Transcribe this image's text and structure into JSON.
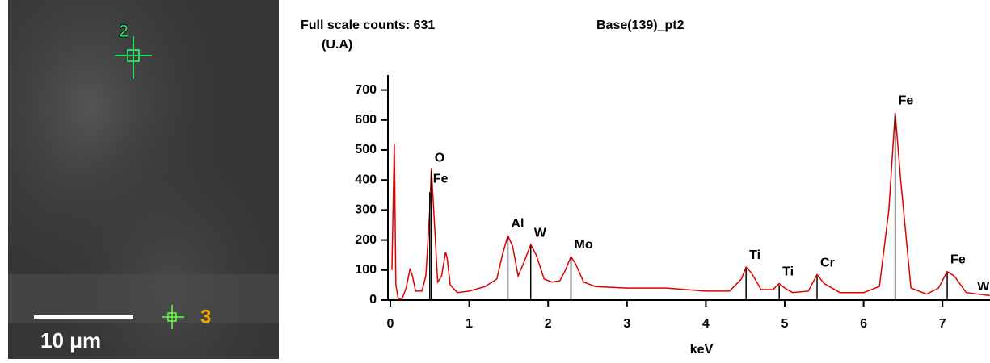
{
  "sem_image": {
    "markers": [
      "2",
      "3"
    ],
    "scale_bar": "10 μm"
  },
  "chart_data": {
    "type": "line",
    "title": "Full scale counts: 631",
    "subtitle": "Base(139)_pt2",
    "y_label": "(U.A)",
    "x_label": "keV",
    "xlim": [
      0,
      7.6
    ],
    "xticks": [
      0,
      1,
      2,
      3,
      4,
      5,
      6,
      7
    ],
    "ylim": [
      0,
      750
    ],
    "yticks": [
      0,
      100,
      200,
      300,
      400,
      500,
      600,
      700
    ],
    "x": [
      0.02,
      0.05,
      0.07,
      0.1,
      0.15,
      0.2,
      0.25,
      0.28,
      0.32,
      0.4,
      0.45,
      0.5,
      0.52,
      0.55,
      0.6,
      0.65,
      0.7,
      0.72,
      0.76,
      0.85,
      1.0,
      1.2,
      1.35,
      1.42,
      1.49,
      1.55,
      1.62,
      1.7,
      1.78,
      1.85,
      1.95,
      2.05,
      2.15,
      2.22,
      2.29,
      2.35,
      2.45,
      2.6,
      3.0,
      3.5,
      4.0,
      4.3,
      4.45,
      4.51,
      4.58,
      4.7,
      4.85,
      4.93,
      5.0,
      5.1,
      5.3,
      5.41,
      5.5,
      5.7,
      6.0,
      6.2,
      6.32,
      6.4,
      6.47,
      6.6,
      6.8,
      6.95,
      7.06,
      7.15,
      7.3,
      7.45,
      7.6
    ],
    "series": [
      {
        "color": "#e00000",
        "values": [
          100,
          520,
          50,
          5,
          5,
          40,
          105,
          80,
          30,
          30,
          80,
          300,
          440,
          300,
          60,
          80,
          160,
          140,
          50,
          25,
          30,
          45,
          70,
          150,
          215,
          180,
          80,
          130,
          185,
          150,
          70,
          60,
          65,
          100,
          145,
          120,
          60,
          45,
          40,
          40,
          30,
          30,
          70,
          110,
          90,
          35,
          35,
          55,
          40,
          25,
          30,
          85,
          55,
          25,
          25,
          45,
          300,
          625,
          400,
          40,
          20,
          40,
          95,
          80,
          25,
          20,
          15
        ]
      }
    ],
    "peaks": [
      {
        "label": "O",
        "energy": 0.52,
        "height": 430
      },
      {
        "label": "Fe",
        "energy": 0.5,
        "height": 360
      },
      {
        "label": "Al",
        "energy": 1.49,
        "height": 210
      },
      {
        "label": "W",
        "energy": 1.78,
        "height": 180
      },
      {
        "label": "Mo",
        "energy": 2.29,
        "height": 140
      },
      {
        "label": "Ti",
        "energy": 4.51,
        "height": 105
      },
      {
        "label": "Ti",
        "energy": 4.93,
        "height": 50
      },
      {
        "label": "Cr",
        "energy": 5.41,
        "height": 80
      },
      {
        "label": "Fe",
        "energy": 6.4,
        "height": 620
      },
      {
        "label": "Fe",
        "energy": 7.06,
        "height": 90
      },
      {
        "label": "W",
        "energy": 7.4,
        "height": 0
      }
    ]
  }
}
